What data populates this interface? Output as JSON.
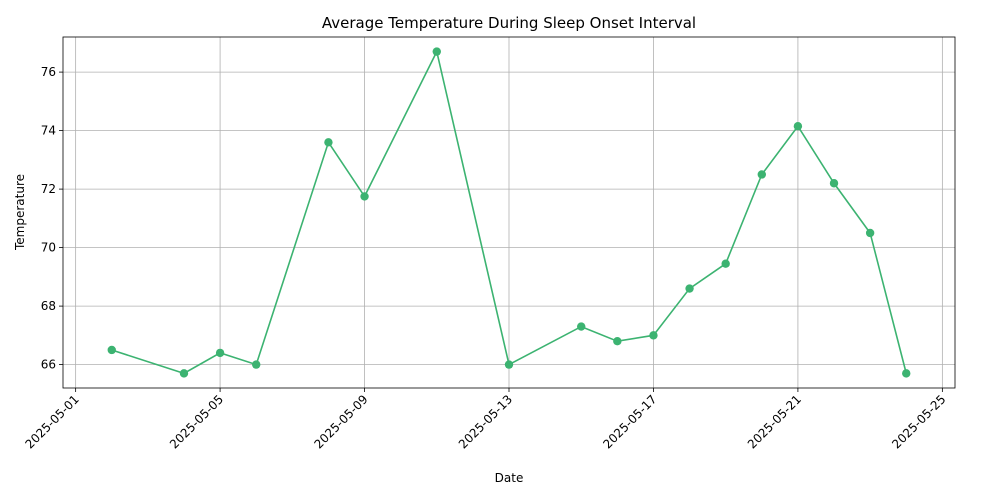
{
  "chart_data": {
    "type": "line",
    "title": "Average Temperature During Sleep Onset Interval",
    "xlabel": "Date",
    "ylabel": "Temperature",
    "grid": true,
    "color": "#3cb371",
    "x_ticks": [
      "2025-05-01",
      "2025-05-05",
      "2025-05-09",
      "2025-05-13",
      "2025-05-17",
      "2025-05-21",
      "2025-05-25"
    ],
    "y_ticks": [
      66,
      68,
      70,
      72,
      74,
      76
    ],
    "xlim": [
      "2025-05-01",
      "2025-05-25"
    ],
    "ylim": [
      65.2,
      77.2
    ],
    "series": [
      {
        "x": [
          "2025-05-02",
          "2025-05-04",
          "2025-05-05",
          "2025-05-06",
          "2025-05-08",
          "2025-05-09",
          "2025-05-11",
          "2025-05-13",
          "2025-05-15",
          "2025-05-16",
          "2025-05-17",
          "2025-05-18",
          "2025-05-19",
          "2025-05-20",
          "2025-05-21",
          "2025-05-22",
          "2025-05-23",
          "2025-05-24"
        ],
        "y": [
          66.5,
          65.7,
          66.4,
          66.0,
          73.6,
          71.75,
          76.7,
          66.0,
          67.3,
          66.8,
          67.0,
          68.6,
          69.45,
          72.5,
          74.15,
          72.2,
          70.5,
          65.7
        ]
      }
    ]
  }
}
